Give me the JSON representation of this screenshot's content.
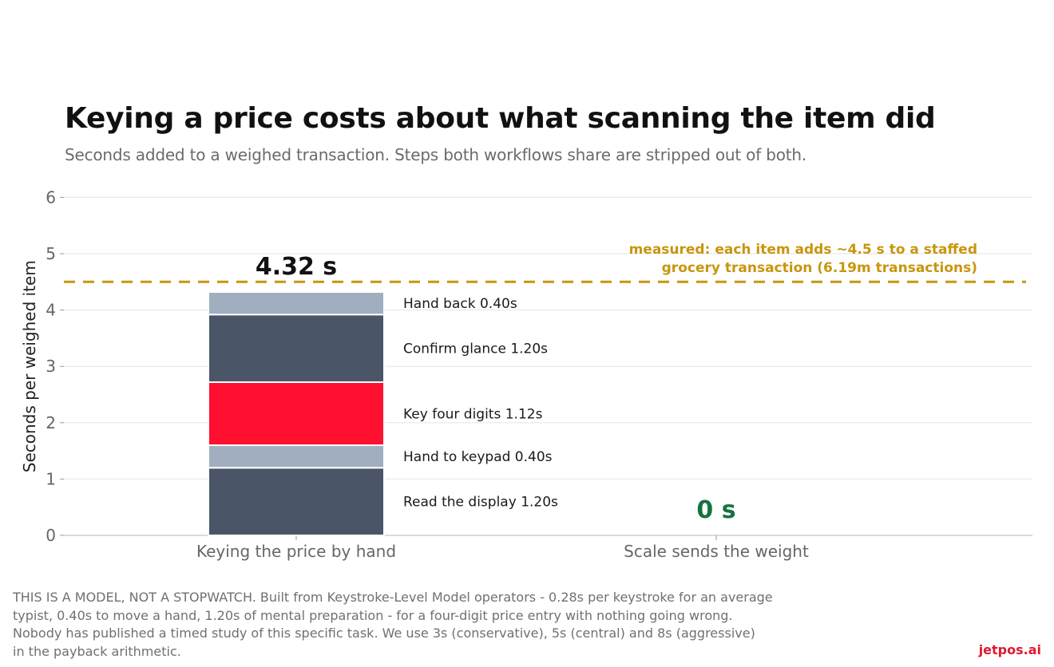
{
  "title": "Keying a price costs about what scanning the item did",
  "subtitle": "Seconds added to a weighed transaction. Steps both workflows share are stripped out of both.",
  "colors": {
    "dark": "#4a5568",
    "light": "#a0aec0",
    "accent": "#ff1030",
    "reference": "#c8960c",
    "zero_label": "#167340",
    "grid": "#e6e6e6",
    "axis_text": "#666666"
  },
  "chart_data": {
    "type": "bar",
    "stacked": true,
    "ylabel": "Seconds per weighed item",
    "ylim": [
      0,
      6
    ],
    "yticks": [
      "0",
      "1",
      "2",
      "3",
      "4",
      "5",
      "6"
    ],
    "grid": true,
    "categories": [
      "Keying the price by hand",
      "Scale sends the weight"
    ],
    "totals": [
      "4.32 s",
      "0 s"
    ],
    "segments": [
      {
        "category": 0,
        "label": "Read the display  1.20s",
        "value": 1.2,
        "color": "dark"
      },
      {
        "category": 0,
        "label": "Hand to keypad  0.40s",
        "value": 0.4,
        "color": "light"
      },
      {
        "category": 0,
        "label": "Key four digits  1.12s",
        "value": 1.12,
        "color": "accent"
      },
      {
        "category": 0,
        "label": "Confirm glance  1.20s",
        "value": 1.2,
        "color": "dark"
      },
      {
        "category": 0,
        "label": "Hand back  0.40s",
        "value": 0.4,
        "color": "light"
      }
    ],
    "reference_line": {
      "value": 4.5,
      "label_lines": [
        "measured: each item adds ~4.5 s to a staffed",
        "grocery transaction (6.19m transactions)"
      ]
    }
  },
  "footnote": [
    "THIS IS A MODEL, NOT A STOPWATCH. Built from Keystroke-Level Model operators - 0.28s per keystroke for an average",
    "typist, 0.40s to move a hand, 1.20s of mental preparation - for a four-digit price entry with nothing going wrong.",
    "Nobody has published a timed study of this specific task. We use 3s (conservative), 5s (central) and 8s (aggressive)",
    "in the payback arithmetic."
  ],
  "brand": "jetpos.ai"
}
